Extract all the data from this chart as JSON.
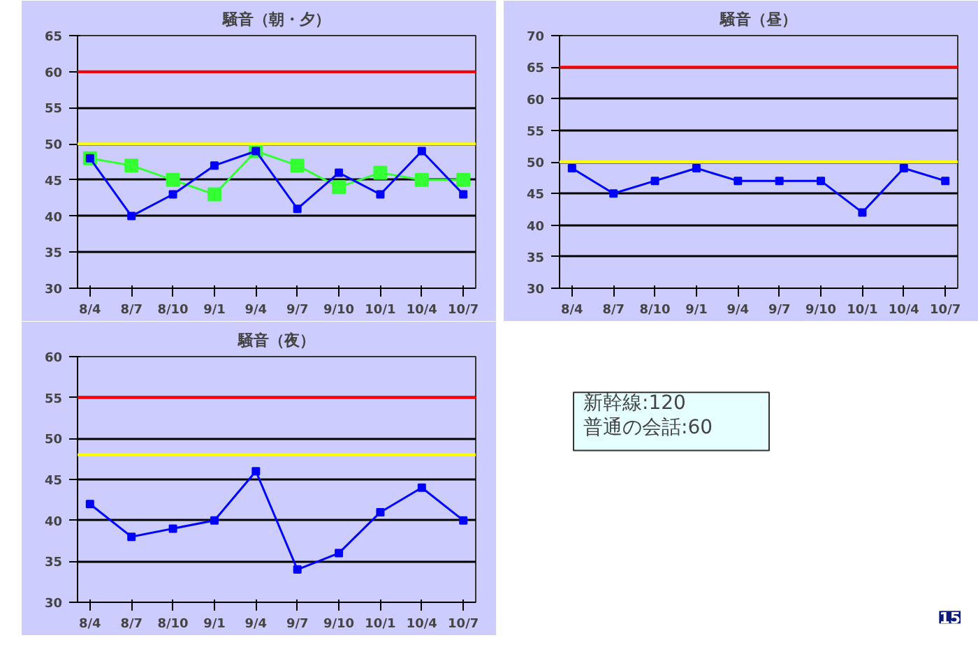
{
  "chart_data": [
    {
      "type": "line",
      "title": "騒音（朝・夕）",
      "categories": [
        "8/4",
        "8/7",
        "8/10",
        "9/1",
        "9/4",
        "9/7",
        "9/10",
        "10/1",
        "10/4",
        "10/7"
      ],
      "series": [
        {
          "color": "#33ff33",
          "values": [
            48,
            47,
            45,
            43,
            49,
            47,
            44,
            46,
            45,
            45
          ]
        },
        {
          "color": "#0000ff",
          "values": [
            48,
            40,
            43,
            47,
            49,
            41,
            46,
            43,
            49,
            43
          ]
        }
      ],
      "ylim": [
        30,
        65
      ],
      "yticks": [
        30,
        35,
        40,
        45,
        50,
        55,
        60,
        65
      ],
      "grid": "y",
      "marker": "square",
      "ref_lines": [
        {
          "axis": "y",
          "value": 60,
          "color": "#ff0000"
        },
        {
          "axis": "y",
          "value": 50,
          "color": "#ffff00"
        }
      ]
    },
    {
      "type": "line",
      "title": "騒音（昼）",
      "categories": [
        "8/4",
        "8/7",
        "8/10",
        "9/1",
        "9/4",
        "9/7",
        "9/10",
        "10/1",
        "10/4",
        "10/7"
      ],
      "series": [
        {
          "color": "#0000ff",
          "values": [
            49,
            45,
            47,
            49,
            47,
            47,
            47,
            42,
            49,
            47
          ]
        }
      ],
      "ylim": [
        30,
        70
      ],
      "yticks": [
        30,
        35,
        40,
        45,
        50,
        55,
        60,
        65,
        70
      ],
      "grid": "y",
      "marker": "square",
      "ref_lines": [
        {
          "axis": "y",
          "value": 65,
          "color": "#ff0000"
        },
        {
          "axis": "y",
          "value": 50,
          "color": "#ffff00"
        }
      ]
    },
    {
      "type": "line",
      "title": "騒音（夜）",
      "categories": [
        "8/4",
        "8/7",
        "8/10",
        "9/1",
        "9/4",
        "9/7",
        "9/10",
        "10/1",
        "10/4",
        "10/7"
      ],
      "series": [
        {
          "color": "#0000ff",
          "values": [
            42,
            38,
            39,
            40,
            46,
            34,
            36,
            41,
            44,
            40
          ]
        }
      ],
      "ylim": [
        30,
        60
      ],
      "yticks": [
        30,
        35,
        40,
        45,
        50,
        55,
        60
      ],
      "grid": "y",
      "marker": "square",
      "ref_lines": [
        {
          "axis": "y",
          "value": 55,
          "color": "#ff0000"
        },
        {
          "axis": "y",
          "value": 48,
          "color": "#ffff00"
        }
      ]
    },
    {
      "type": "other",
      "annotations": [
        "新幹線:120",
        "普通の会話:60",
        "15"
      ]
    }
  ]
}
